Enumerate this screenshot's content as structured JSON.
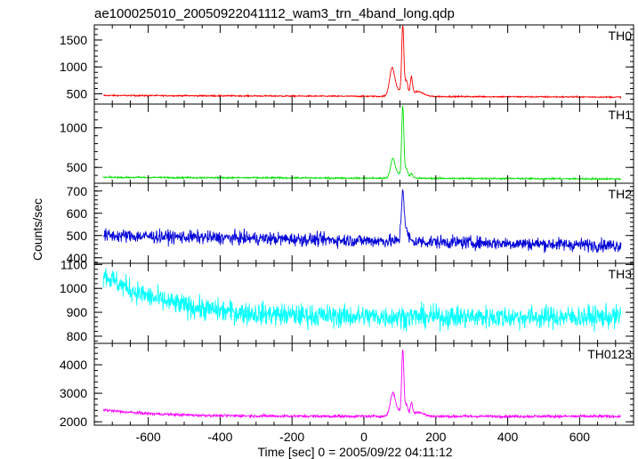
{
  "chart_data": {
    "type": "line",
    "title": "ae100025010_20050922041112_wam3_trn_4band_long.qdp",
    "xlabel": "Time [sec] 0 = 2005/09/22 04:11:12",
    "ylabel": "Counts/sec",
    "xlim": [
      -750,
      750
    ],
    "x_ticks": [
      -600,
      -400,
      -200,
      0,
      200,
      400,
      600
    ],
    "x_sampling": {
      "start": -725,
      "end": 715,
      "step": 1
    },
    "grid": false,
    "panels": [
      {
        "name": "TH0",
        "color": "#ff0000",
        "ylim": [
          310,
          1780
        ],
        "yticks": [
          500,
          1000,
          1500
        ],
        "series": [
          {
            "name": "TH0",
            "baseline_start": 470,
            "baseline_end": 440,
            "noise": 12,
            "features": [
              {
                "x": 78,
                "peak": 470,
                "width": 7
              },
              {
                "x": 92,
                "peak": 120,
                "width": 12
              },
              {
                "x": 108,
                "peak": 1270,
                "width": 3
              },
              {
                "x": 118,
                "peak": 280,
                "width": 4
              },
              {
                "x": 132,
                "peak": 330,
                "width": 3
              },
              {
                "x": 150,
                "peak": 90,
                "width": 15
              }
            ]
          }
        ]
      },
      {
        "name": "TH1",
        "color": "#00e000",
        "ylim": [
          300,
          1300
        ],
        "yticks": [
          500,
          1000
        ],
        "series": [
          {
            "name": "TH1",
            "baseline_start": 375,
            "baseline_end": 355,
            "noise": 10,
            "features": [
              {
                "x": 80,
                "peak": 220,
                "width": 6
              },
              {
                "x": 92,
                "peak": 60,
                "width": 10
              },
              {
                "x": 108,
                "peak": 900,
                "width": 3
              },
              {
                "x": 118,
                "peak": 120,
                "width": 4
              },
              {
                "x": 132,
                "peak": 60,
                "width": 4
              }
            ]
          }
        ]
      },
      {
        "name": "TH2",
        "color": "#0000d8",
        "ylim": [
          375,
          735
        ],
        "yticks": [
          400,
          500,
          600,
          700
        ],
        "series": [
          {
            "name": "TH2",
            "baseline_start": 500,
            "baseline_end": 455,
            "noise": 28,
            "features": [
              {
                "x": 108,
                "peak": 220,
                "width": 4
              },
              {
                "x": 118,
                "peak": 40,
                "width": 6
              }
            ]
          }
        ]
      },
      {
        "name": "TH3",
        "color": "#00ffff",
        "ylim": [
          770,
          1105
        ],
        "yticks": [
          800,
          900,
          1000,
          1100
        ],
        "series": [
          {
            "name": "TH3",
            "baseline_start": 1060,
            "baseline_end": 880,
            "noise": 45,
            "decay_tau": 170,
            "features": []
          }
        ]
      },
      {
        "name": "TH0123",
        "color": "#ff00ff",
        "ylim": [
          1880,
          4750
        ],
        "yticks": [
          2000,
          3000,
          4000
        ],
        "series": [
          {
            "name": "TH0123",
            "baseline_start": 2420,
            "baseline_end": 2190,
            "noise": 45,
            "decay_tau": 150,
            "features": [
              {
                "x": 80,
                "peak": 700,
                "width": 7
              },
              {
                "x": 92,
                "peak": 200,
                "width": 12
              },
              {
                "x": 108,
                "peak": 2250,
                "width": 3
              },
              {
                "x": 118,
                "peak": 400,
                "width": 4
              },
              {
                "x": 132,
                "peak": 420,
                "width": 3
              },
              {
                "x": 150,
                "peak": 150,
                "width": 15
              }
            ]
          }
        ]
      }
    ]
  }
}
